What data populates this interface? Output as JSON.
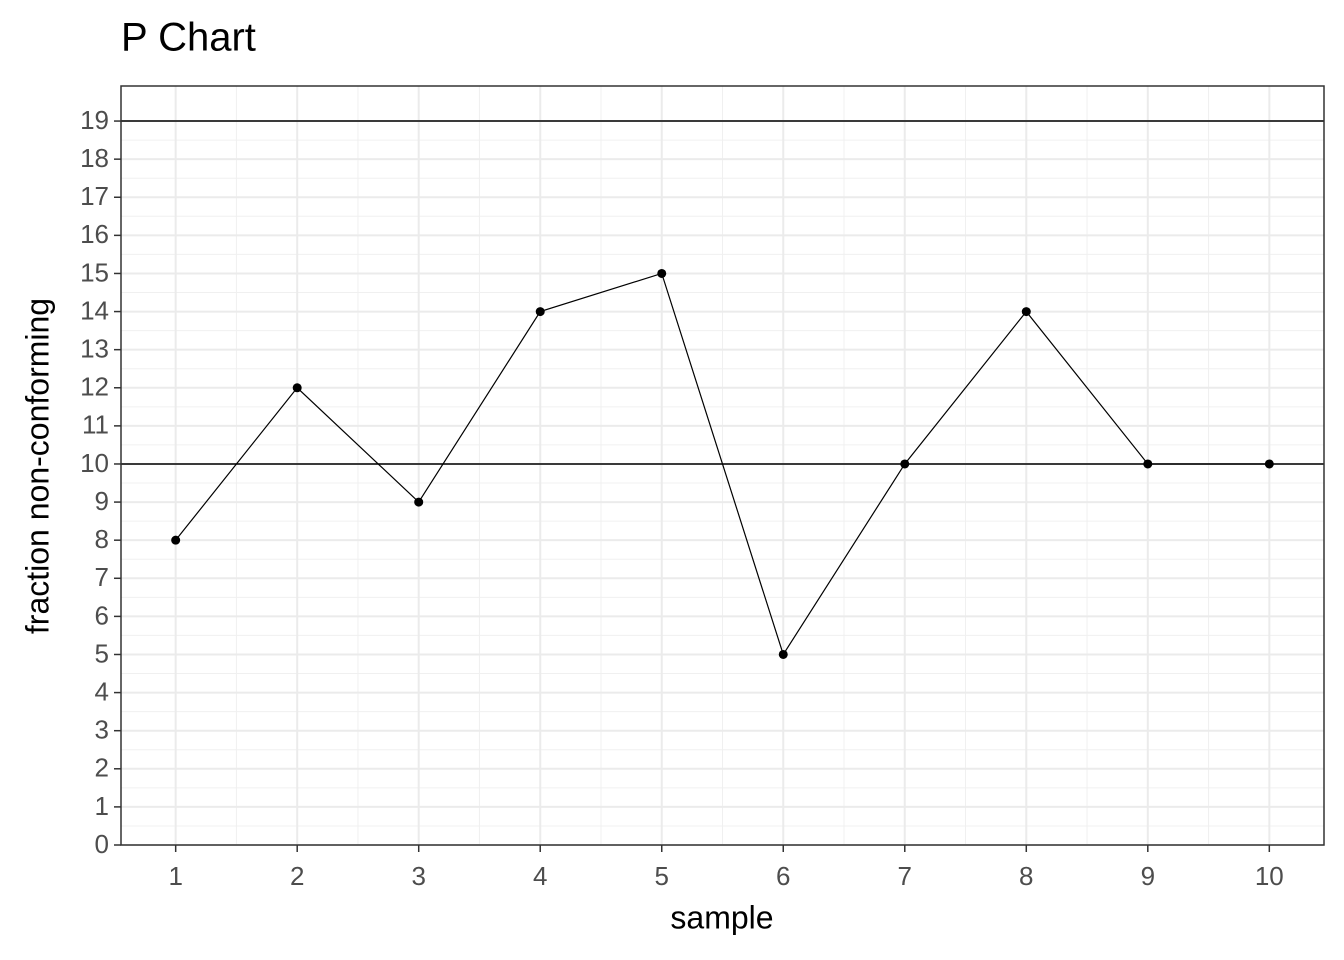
{
  "chart_data": {
    "type": "line",
    "title": "P Chart",
    "x_label": "sample",
    "y_label": "fraction non-conforming",
    "x": [
      1,
      2,
      3,
      4,
      5,
      6,
      7,
      8,
      9,
      10
    ],
    "values": [
      8,
      12,
      9,
      14,
      15,
      5,
      10,
      14,
      10,
      10
    ],
    "color": "#000000",
    "hlines": [
      10,
      19
    ],
    "xlim": [
      0.55,
      10.45
    ],
    "ylim": [
      0,
      19.92
    ],
    "xticks": [
      1,
      2,
      3,
      4,
      5,
      6,
      7,
      8,
      9,
      10
    ],
    "yticks": [
      0,
      1,
      2,
      3,
      4,
      5,
      6,
      7,
      8,
      9,
      10,
      11,
      12,
      13,
      14,
      15,
      16,
      17,
      18,
      19
    ],
    "grid": true
  }
}
